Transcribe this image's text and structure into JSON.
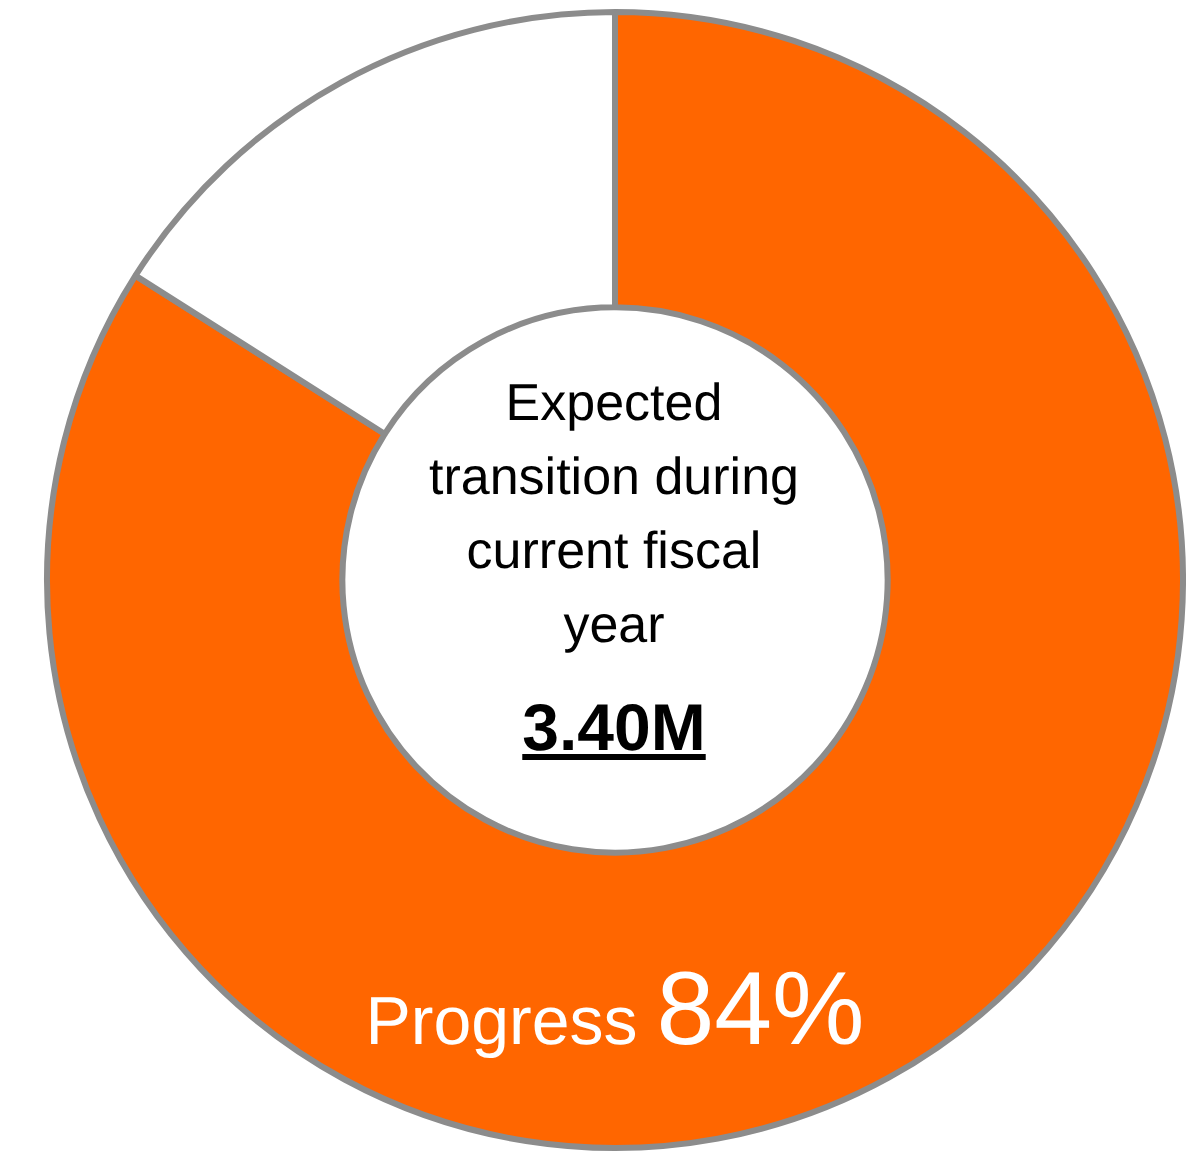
{
  "chart_data": {
    "type": "donut",
    "categories": [
      "Progress",
      null
    ],
    "values": [
      84,
      16
    ],
    "colors": [
      "#ff6600",
      "#ffffff"
    ],
    "value_labels": [
      "84%",
      null
    ],
    "annotations": [
      "Expected transition during current fiscal year",
      "3.40M"
    ],
    "legend": false
  }
}
